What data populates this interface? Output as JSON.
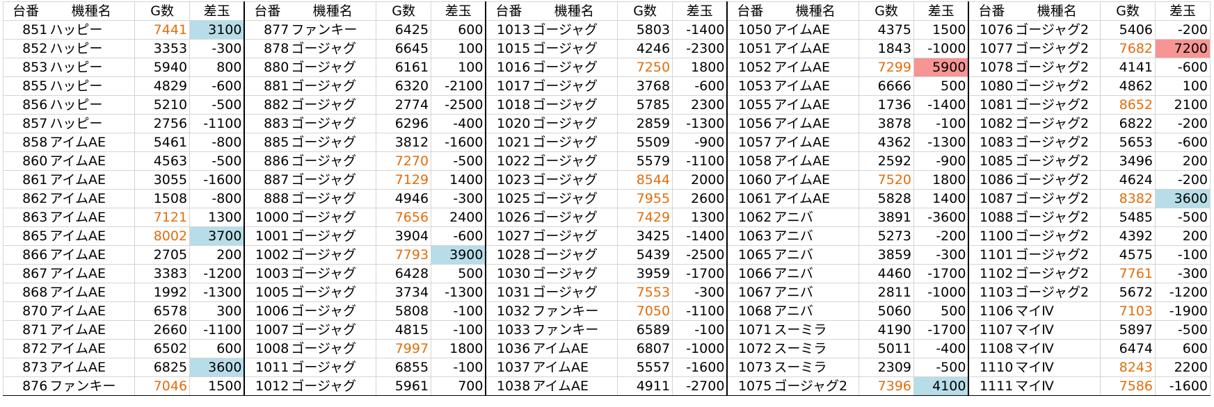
{
  "headers": [
    "台番",
    "機種名",
    "G数",
    "差玉"
  ],
  "styles": {
    "high_games_color": "#e46c0a",
    "blue_highlight": "#b7dde8",
    "red_highlight": "#f79494"
  },
  "groups": [
    {
      "rows": [
        {
          "id": "851",
          "name": "ハッピー",
          "g": "7441",
          "diff": "3100",
          "g_hi": true,
          "diff_hl": "blue"
        },
        {
          "id": "852",
          "name": "ハッピー",
          "g": "3353",
          "diff": "-300"
        },
        {
          "id": "853",
          "name": "ハッピー",
          "g": "5940",
          "diff": "800"
        },
        {
          "id": "855",
          "name": "ハッピー",
          "g": "4829",
          "diff": "-600"
        },
        {
          "id": "856",
          "name": "ハッピー",
          "g": "5210",
          "diff": "-500"
        },
        {
          "id": "857",
          "name": "ハッピー",
          "g": "2756",
          "diff": "-1100"
        },
        {
          "id": "858",
          "name": "アイムAE",
          "g": "5461",
          "diff": "-800"
        },
        {
          "id": "860",
          "name": "アイムAE",
          "g": "4563",
          "diff": "-500"
        },
        {
          "id": "861",
          "name": "アイムAE",
          "g": "3055",
          "diff": "-1600"
        },
        {
          "id": "862",
          "name": "アイムAE",
          "g": "1508",
          "diff": "-800"
        },
        {
          "id": "863",
          "name": "アイムAE",
          "g": "7121",
          "diff": "1300",
          "g_hi": true
        },
        {
          "id": "865",
          "name": "アイムAE",
          "g": "8002",
          "diff": "3700",
          "g_hi": true,
          "diff_hl": "blue"
        },
        {
          "id": "866",
          "name": "アイムAE",
          "g": "2705",
          "diff": "200"
        },
        {
          "id": "867",
          "name": "アイムAE",
          "g": "3383",
          "diff": "-1200"
        },
        {
          "id": "868",
          "name": "アイムAE",
          "g": "1992",
          "diff": "-1300"
        },
        {
          "id": "870",
          "name": "アイムAE",
          "g": "6578",
          "diff": "300"
        },
        {
          "id": "871",
          "name": "アイムAE",
          "g": "2660",
          "diff": "-1100"
        },
        {
          "id": "872",
          "name": "アイムAE",
          "g": "6502",
          "diff": "600"
        },
        {
          "id": "873",
          "name": "アイムAE",
          "g": "6825",
          "diff": "3600",
          "diff_hl": "blue"
        },
        {
          "id": "876",
          "name": "ファンキー",
          "g": "7046",
          "diff": "1500",
          "g_hi": true
        }
      ]
    },
    {
      "rows": [
        {
          "id": "877",
          "name": "ファンキー",
          "g": "6425",
          "diff": "600"
        },
        {
          "id": "878",
          "name": "ゴージャグ",
          "g": "6645",
          "diff": "100"
        },
        {
          "id": "880",
          "name": "ゴージャグ",
          "g": "6161",
          "diff": "100"
        },
        {
          "id": "881",
          "name": "ゴージャグ",
          "g": "6320",
          "diff": "-2100"
        },
        {
          "id": "882",
          "name": "ゴージャグ",
          "g": "2774",
          "diff": "-2500"
        },
        {
          "id": "883",
          "name": "ゴージャグ",
          "g": "6296",
          "diff": "-400"
        },
        {
          "id": "885",
          "name": "ゴージャグ",
          "g": "3812",
          "diff": "-1600"
        },
        {
          "id": "886",
          "name": "ゴージャグ",
          "g": "7270",
          "diff": "-500",
          "g_hi": true
        },
        {
          "id": "887",
          "name": "ゴージャグ",
          "g": "7129",
          "diff": "1400",
          "g_hi": true
        },
        {
          "id": "888",
          "name": "ゴージャグ",
          "g": "4946",
          "diff": "-300"
        },
        {
          "id": "1000",
          "name": "ゴージャグ",
          "g": "7656",
          "diff": "2400",
          "g_hi": true
        },
        {
          "id": "1001",
          "name": "ゴージャグ",
          "g": "3904",
          "diff": "-600"
        },
        {
          "id": "1002",
          "name": "ゴージャグ",
          "g": "7793",
          "diff": "3900",
          "g_hi": true,
          "diff_hl": "blue"
        },
        {
          "id": "1003",
          "name": "ゴージャグ",
          "g": "6428",
          "diff": "500"
        },
        {
          "id": "1005",
          "name": "ゴージャグ",
          "g": "3734",
          "diff": "-1300"
        },
        {
          "id": "1006",
          "name": "ゴージャグ",
          "g": "5808",
          "diff": "-100"
        },
        {
          "id": "1007",
          "name": "ゴージャグ",
          "g": "4815",
          "diff": "-100"
        },
        {
          "id": "1008",
          "name": "ゴージャグ",
          "g": "7997",
          "diff": "1800",
          "g_hi": true
        },
        {
          "id": "1011",
          "name": "ゴージャグ",
          "g": "6855",
          "diff": "-100"
        },
        {
          "id": "1012",
          "name": "ゴージャグ",
          "g": "5961",
          "diff": "700"
        }
      ]
    },
    {
      "rows": [
        {
          "id": "1013",
          "name": "ゴージャグ",
          "g": "5803",
          "diff": "-1400"
        },
        {
          "id": "1015",
          "name": "ゴージャグ",
          "g": "4246",
          "diff": "-2300"
        },
        {
          "id": "1016",
          "name": "ゴージャグ",
          "g": "7250",
          "diff": "1800",
          "g_hi": true
        },
        {
          "id": "1017",
          "name": "ゴージャグ",
          "g": "3768",
          "diff": "-600"
        },
        {
          "id": "1018",
          "name": "ゴージャグ",
          "g": "5785",
          "diff": "2300"
        },
        {
          "id": "1020",
          "name": "ゴージャグ",
          "g": "2859",
          "diff": "-1300"
        },
        {
          "id": "1021",
          "name": "ゴージャグ",
          "g": "5509",
          "diff": "-900"
        },
        {
          "id": "1022",
          "name": "ゴージャグ",
          "g": "5579",
          "diff": "-1100"
        },
        {
          "id": "1023",
          "name": "ゴージャグ",
          "g": "8544",
          "diff": "2000",
          "g_hi": true
        },
        {
          "id": "1025",
          "name": "ゴージャグ",
          "g": "7955",
          "diff": "2600",
          "g_hi": true
        },
        {
          "id": "1026",
          "name": "ゴージャグ",
          "g": "7429",
          "diff": "1300",
          "g_hi": true
        },
        {
          "id": "1027",
          "name": "ゴージャグ",
          "g": "3425",
          "diff": "-1400"
        },
        {
          "id": "1028",
          "name": "ゴージャグ",
          "g": "5439",
          "diff": "-2500"
        },
        {
          "id": "1030",
          "name": "ゴージャグ",
          "g": "3959",
          "diff": "-1700"
        },
        {
          "id": "1031",
          "name": "ゴージャグ",
          "g": "7553",
          "diff": "-300",
          "g_hi": true
        },
        {
          "id": "1032",
          "name": "ファンキー",
          "g": "7050",
          "diff": "-1100",
          "g_hi": true
        },
        {
          "id": "1033",
          "name": "ファンキー",
          "g": "6589",
          "diff": "-100"
        },
        {
          "id": "1036",
          "name": "アイムAE",
          "g": "6807",
          "diff": "-1000"
        },
        {
          "id": "1037",
          "name": "アイムAE",
          "g": "5557",
          "diff": "-1600"
        },
        {
          "id": "1038",
          "name": "アイムAE",
          "g": "4911",
          "diff": "-2700"
        }
      ]
    },
    {
      "rows": [
        {
          "id": "1050",
          "name": "アイムAE",
          "g": "4375",
          "diff": "1500"
        },
        {
          "id": "1051",
          "name": "アイムAE",
          "g": "1843",
          "diff": "-1000"
        },
        {
          "id": "1052",
          "name": "アイムAE",
          "g": "7299",
          "diff": "5900",
          "g_hi": true,
          "diff_hl": "red"
        },
        {
          "id": "1053",
          "name": "アイムAE",
          "g": "6666",
          "diff": "500"
        },
        {
          "id": "1055",
          "name": "アイムAE",
          "g": "1736",
          "diff": "-1400"
        },
        {
          "id": "1056",
          "name": "アイムAE",
          "g": "3878",
          "diff": "-100"
        },
        {
          "id": "1057",
          "name": "アイムAE",
          "g": "4362",
          "diff": "-1300"
        },
        {
          "id": "1058",
          "name": "アイムAE",
          "g": "2592",
          "diff": "-900"
        },
        {
          "id": "1060",
          "name": "アイムAE",
          "g": "7520",
          "diff": "1800",
          "g_hi": true
        },
        {
          "id": "1061",
          "name": "アイムAE",
          "g": "5828",
          "diff": "1400"
        },
        {
          "id": "1062",
          "name": "アニバ",
          "g": "3891",
          "diff": "-3600"
        },
        {
          "id": "1063",
          "name": "アニバ",
          "g": "5273",
          "diff": "-200"
        },
        {
          "id": "1065",
          "name": "アニバ",
          "g": "3859",
          "diff": "-300"
        },
        {
          "id": "1066",
          "name": "アニバ",
          "g": "4460",
          "diff": "-1700"
        },
        {
          "id": "1067",
          "name": "アニバ",
          "g": "2811",
          "diff": "-1000"
        },
        {
          "id": "1068",
          "name": "アニバ",
          "g": "5060",
          "diff": "500"
        },
        {
          "id": "1071",
          "name": "スーミラ",
          "g": "4190",
          "diff": "-1700"
        },
        {
          "id": "1072",
          "name": "スーミラ",
          "g": "5011",
          "diff": "-400"
        },
        {
          "id": "1073",
          "name": "スーミラ",
          "g": "2309",
          "diff": "-500"
        },
        {
          "id": "1075",
          "name": "ゴージャグ2",
          "g": "7396",
          "diff": "4100",
          "g_hi": true,
          "diff_hl": "blue"
        }
      ]
    },
    {
      "rows": [
        {
          "id": "1076",
          "name": "ゴージャグ2",
          "g": "5406",
          "diff": "-200"
        },
        {
          "id": "1077",
          "name": "ゴージャグ2",
          "g": "7682",
          "diff": "7200",
          "g_hi": true,
          "diff_hl": "red"
        },
        {
          "id": "1078",
          "name": "ゴージャグ2",
          "g": "4141",
          "diff": "-600"
        },
        {
          "id": "1080",
          "name": "ゴージャグ2",
          "g": "4862",
          "diff": "100"
        },
        {
          "id": "1081",
          "name": "ゴージャグ2",
          "g": "8652",
          "diff": "2100",
          "g_hi": true
        },
        {
          "id": "1082",
          "name": "ゴージャグ2",
          "g": "6822",
          "diff": "-200"
        },
        {
          "id": "1083",
          "name": "ゴージャグ2",
          "g": "5653",
          "diff": "-600"
        },
        {
          "id": "1085",
          "name": "ゴージャグ2",
          "g": "3496",
          "diff": "200"
        },
        {
          "id": "1086",
          "name": "ゴージャグ2",
          "g": "4624",
          "diff": "-200"
        },
        {
          "id": "1087",
          "name": "ゴージャグ2",
          "g": "8382",
          "diff": "3600",
          "g_hi": true,
          "diff_hl": "blue"
        },
        {
          "id": "1088",
          "name": "ゴージャグ2",
          "g": "5485",
          "diff": "-500"
        },
        {
          "id": "1100",
          "name": "ゴージャグ2",
          "g": "4392",
          "diff": "200"
        },
        {
          "id": "1101",
          "name": "ゴージャグ2",
          "g": "4575",
          "diff": "-100"
        },
        {
          "id": "1102",
          "name": "ゴージャグ2",
          "g": "7761",
          "diff": "-300",
          "g_hi": true
        },
        {
          "id": "1103",
          "name": "ゴージャグ2",
          "g": "5672",
          "diff": "-1200"
        },
        {
          "id": "1106",
          "name": "マイⅣ",
          "g": "7103",
          "diff": "-1900",
          "g_hi": true
        },
        {
          "id": "1107",
          "name": "マイⅣ",
          "g": "5897",
          "diff": "-500"
        },
        {
          "id": "1108",
          "name": "マイⅣ",
          "g": "6474",
          "diff": "600"
        },
        {
          "id": "1110",
          "name": "マイⅣ",
          "g": "8243",
          "diff": "2200",
          "g_hi": true
        },
        {
          "id": "1111",
          "name": "マイⅣ",
          "g": "7586",
          "diff": "-1600",
          "g_hi": true
        }
      ]
    }
  ]
}
